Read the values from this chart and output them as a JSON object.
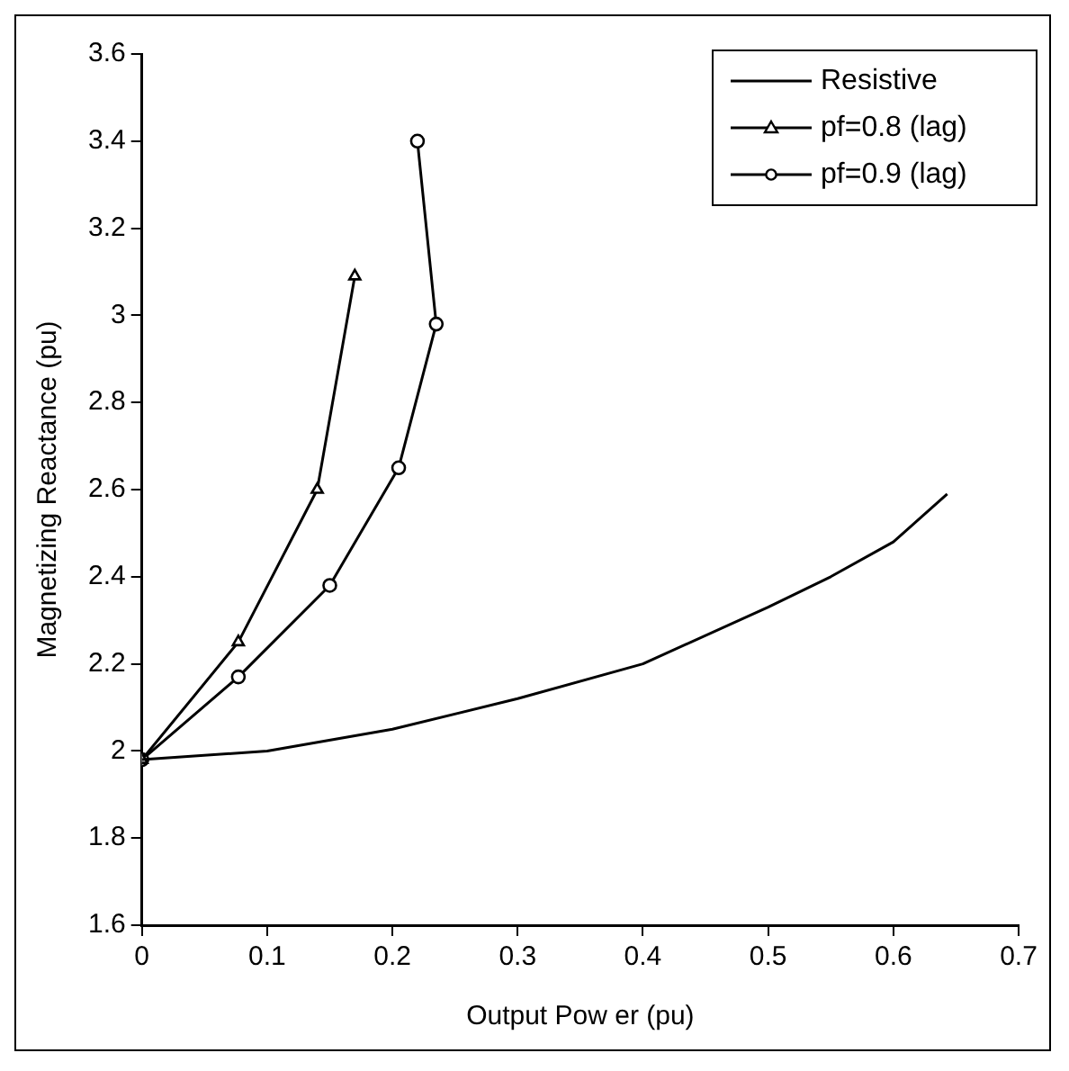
{
  "chart_data": {
    "type": "line",
    "xlabel": "Output Pow er (pu)",
    "ylabel": "Magnetizing Reactance (pu)",
    "xlim": [
      0,
      0.7
    ],
    "xticks": [
      0,
      0.1,
      0.2,
      0.3,
      0.4,
      0.5,
      0.6,
      0.7
    ],
    "ylim": [
      1.6,
      3.6
    ],
    "yticks": [
      1.6,
      1.8,
      2,
      2.2,
      2.4,
      2.6,
      2.8,
      3,
      3.2,
      3.4,
      3.6
    ],
    "grid": false,
    "legend": "top right",
    "series": [
      {
        "name": "Resistive",
        "color": "#000000",
        "marker": "none",
        "x": [
          0,
          0.1,
          0.2,
          0.3,
          0.4,
          0.5,
          0.55,
          0.6,
          0.643
        ],
        "values": [
          1.98,
          2.0,
          2.05,
          2.12,
          2.2,
          2.33,
          2.4,
          2.48,
          2.59
        ]
      },
      {
        "name": "pf=0.8 (lag)",
        "color": "#000000",
        "marker": "triangle",
        "x": [
          0,
          0.077,
          0.14,
          0.17
        ],
        "values": [
          1.98,
          2.25,
          2.6,
          3.09
        ]
      },
      {
        "name": "pf=0.9 (lag)",
        "color": "#000000",
        "marker": "circle",
        "x": [
          0,
          0.077,
          0.15,
          0.205,
          0.235,
          0.22
        ],
        "values": [
          1.98,
          2.17,
          2.38,
          2.65,
          2.98,
          3.4
        ]
      }
    ]
  }
}
